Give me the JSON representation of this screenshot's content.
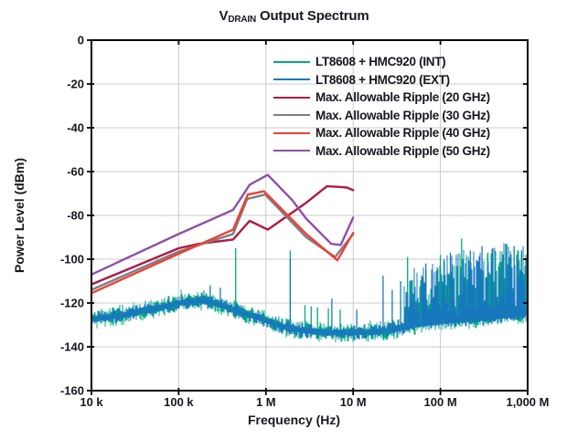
{
  "colors": {
    "grid": "#cbcbcb",
    "frame": "#000000",
    "text": "#17171f",
    "background": "#ffffff"
  },
  "chart_data": {
    "type": "line",
    "title": "V_DRAIN Output Spectrum",
    "title_parts": {
      "v": "V",
      "sub": "DRAIN",
      "rest": "Output Spectrum"
    },
    "xlabel": "Frequency (Hz)",
    "ylabel": "Power Level (dBm)",
    "x_scale": "log",
    "xlim": [
      10000,
      1000000000
    ],
    "ylim": [
      -160,
      0
    ],
    "grid": true,
    "legend_position": "top-right",
    "x_ticks": [
      {
        "value": 10000.0,
        "label": "10 k"
      },
      {
        "value": 100000.0,
        "label": "100 k"
      },
      {
        "value": 1000000.0,
        "label": "1 M"
      },
      {
        "value": 10000000.0,
        "label": "10 M"
      },
      {
        "value": 100000000.0,
        "label": "100 M"
      },
      {
        "value": 1000000000.0,
        "label": "1,000 M"
      }
    ],
    "y_ticks": [
      {
        "value": 0,
        "label": "0"
      },
      {
        "value": -20,
        "label": "-20"
      },
      {
        "value": -40,
        "label": "-40"
      },
      {
        "value": -60,
        "label": "-60"
      },
      {
        "value": -80,
        "label": "-80"
      },
      {
        "value": -100,
        "label": "-100"
      },
      {
        "value": -120,
        "label": "-120"
      },
      {
        "value": -140,
        "label": "-140"
      },
      {
        "value": -160,
        "label": "-160"
      }
    ],
    "series": [
      {
        "name": "LT8608 + HMC920 (INT)",
        "color": "#00AC7E",
        "kind": "noise",
        "seed": 7,
        "fuzz_base_db": 1.1,
        "fuzz_amp_db": 3.4,
        "forest_factor": 0.92,
        "envelope": [
          [
            10000.0,
            -127.5
          ],
          [
            20000.0,
            -126
          ],
          [
            40000.0,
            -123.5
          ],
          [
            70000.0,
            -121.5
          ],
          [
            120000.0,
            -119.5
          ],
          [
            180000.0,
            -119
          ],
          [
            250000.0,
            -120
          ],
          [
            400000.0,
            -122.5
          ],
          [
            600000.0,
            -125
          ],
          [
            1000000.0,
            -128
          ],
          [
            1600000.0,
            -131
          ],
          [
            2500000.0,
            -132.5
          ],
          [
            5000000.0,
            -133.5
          ],
          [
            10000000.0,
            -133.5
          ],
          [
            20000000.0,
            -133
          ],
          [
            30000000.0,
            -132
          ],
          [
            40000000.0,
            -131
          ],
          [
            60000000.0,
            -129.5
          ],
          [
            100000000.0,
            -128.5
          ],
          [
            200000000.0,
            -127.5
          ],
          [
            400000000.0,
            -126.5
          ],
          [
            700000000.0,
            -125.5
          ],
          [
            1000000000.0,
            -124.5
          ]
        ],
        "spikes": [
          [
            150000.0,
            -116.5
          ],
          [
            210000.0,
            -116
          ],
          [
            450000.0,
            -95
          ],
          [
            1900000.0,
            -96
          ],
          [
            2800000.0,
            -121
          ],
          [
            3300000.0,
            -121.5
          ],
          [
            3900000.0,
            -122
          ],
          [
            5200000.0,
            -122.5
          ],
          [
            7100000.0,
            -123
          ],
          [
            42000000.0,
            -99
          ],
          [
            100000000.0,
            -98
          ],
          [
            175000000.0,
            -90.5
          ],
          [
            350000000.0,
            -97
          ],
          [
            575000000.0,
            -93
          ],
          [
            950000000.0,
            -98
          ]
        ]
      },
      {
        "name": "LT8608 + HMC920 (EXT)",
        "color": "#1878BE",
        "kind": "noise",
        "seed": 99,
        "fuzz_base_db": 0.9,
        "fuzz_amp_db": 2.6,
        "forest_factor": 1.0,
        "envelope": [
          [
            10000.0,
            -127.5
          ],
          [
            20000.0,
            -126
          ],
          [
            40000.0,
            -123.5
          ],
          [
            70000.0,
            -121.5
          ],
          [
            120000.0,
            -119.5
          ],
          [
            180000.0,
            -119
          ],
          [
            250000.0,
            -120
          ],
          [
            400000.0,
            -122.5
          ],
          [
            600000.0,
            -125
          ],
          [
            1000000.0,
            -128
          ],
          [
            1600000.0,
            -131
          ],
          [
            2500000.0,
            -132.5
          ],
          [
            5000000.0,
            -133.5
          ],
          [
            10000000.0,
            -133.5
          ],
          [
            20000000.0,
            -133
          ],
          [
            30000000.0,
            -132
          ],
          [
            40000000.0,
            -131
          ],
          [
            60000000.0,
            -129.5
          ],
          [
            100000000.0,
            -128.5
          ],
          [
            200000000.0,
            -127.5
          ],
          [
            400000000.0,
            -126.5
          ],
          [
            700000000.0,
            -125.5
          ],
          [
            1000000000.0,
            -124.5
          ]
        ],
        "spikes": [
          [
            230000.0,
            -112
          ],
          [
            300000.0,
            -113
          ],
          [
            1900000.0,
            -100
          ],
          [
            5700000.0,
            -118
          ],
          [
            11000000.0,
            -123
          ],
          [
            22000000.0,
            -107.5
          ],
          [
            28000000.0,
            -114
          ],
          [
            35000000.0,
            -110
          ],
          [
            68000000.0,
            -102
          ],
          [
            110000000.0,
            -100
          ],
          [
            130000000.0,
            -97
          ],
          [
            220000000.0,
            -96
          ],
          [
            300000000.0,
            -94
          ],
          [
            400000000.0,
            -95
          ],
          [
            560000000.0,
            -93
          ],
          [
            700000000.0,
            -94
          ],
          [
            850000000.0,
            -96
          ]
        ]
      },
      {
        "name": "Max. Allowable Ripple (20 GHz)",
        "color": "#AE1A45",
        "kind": "line",
        "points": [
          [
            10000.0,
            -111.5
          ],
          [
            100000.0,
            -95
          ],
          [
            170000.0,
            -93
          ],
          [
            420000.0,
            -91
          ],
          [
            650000.0,
            -82.5
          ],
          [
            1050000.0,
            -86.5
          ],
          [
            2900000.0,
            -74.2
          ],
          [
            5000000.0,
            -66.7
          ],
          [
            7000000.0,
            -67
          ],
          [
            8500000.0,
            -67.3
          ],
          [
            10000000.0,
            -68.5
          ]
        ]
      },
      {
        "name": "Max. Allowable Ripple (30 GHz)",
        "color": "#7A7E8A",
        "kind": "line",
        "points": [
          [
            10000.0,
            -114
          ],
          [
            100000.0,
            -96.5
          ],
          [
            420000.0,
            -88.5
          ],
          [
            610000.0,
            -72.5
          ],
          [
            980000.0,
            -70.5
          ],
          [
            2900000.0,
            -90
          ],
          [
            6200000.0,
            -99
          ],
          [
            10000000.0,
            -88.5
          ]
        ]
      },
      {
        "name": "Max. Allowable Ripple (40 GHz)",
        "color": "#EF4130",
        "kind": "line",
        "points": [
          [
            10000.0,
            -115.5
          ],
          [
            100000.0,
            -97.5
          ],
          [
            420000.0,
            -86.5
          ],
          [
            620000.0,
            -70.5
          ],
          [
            950000.0,
            -69
          ],
          [
            2900000.0,
            -88.5
          ],
          [
            6600000.0,
            -100.5
          ],
          [
            10000000.0,
            -88
          ]
        ]
      },
      {
        "name": "Max. Allowable Ripple (50 GHz)",
        "color": "#8F4FA8",
        "kind": "line",
        "points": [
          [
            10000.0,
            -107
          ],
          [
            100000.0,
            -88.5
          ],
          [
            420000.0,
            -77.5
          ],
          [
            530000.0,
            -71.5
          ],
          [
            650000.0,
            -66
          ],
          [
            1050000.0,
            -61.5
          ],
          [
            2000000.0,
            -73
          ],
          [
            2900000.0,
            -81.5
          ],
          [
            5600000.0,
            -93
          ],
          [
            7200000.0,
            -93.5
          ],
          [
            10000000.0,
            -81
          ]
        ]
      }
    ],
    "noise_forest": {
      "from": 38000000.0,
      "to": 1000000000.0,
      "tops": [
        [
          38000000.0,
          -106
        ],
        [
          70000000.0,
          -101
        ],
        [
          100000000.0,
          -99
        ],
        [
          150000000.0,
          -95
        ],
        [
          250000000.0,
          -93
        ],
        [
          400000000.0,
          -94
        ],
        [
          600000000.0,
          -92
        ],
        [
          1000000000.0,
          -94
        ]
      ]
    }
  }
}
